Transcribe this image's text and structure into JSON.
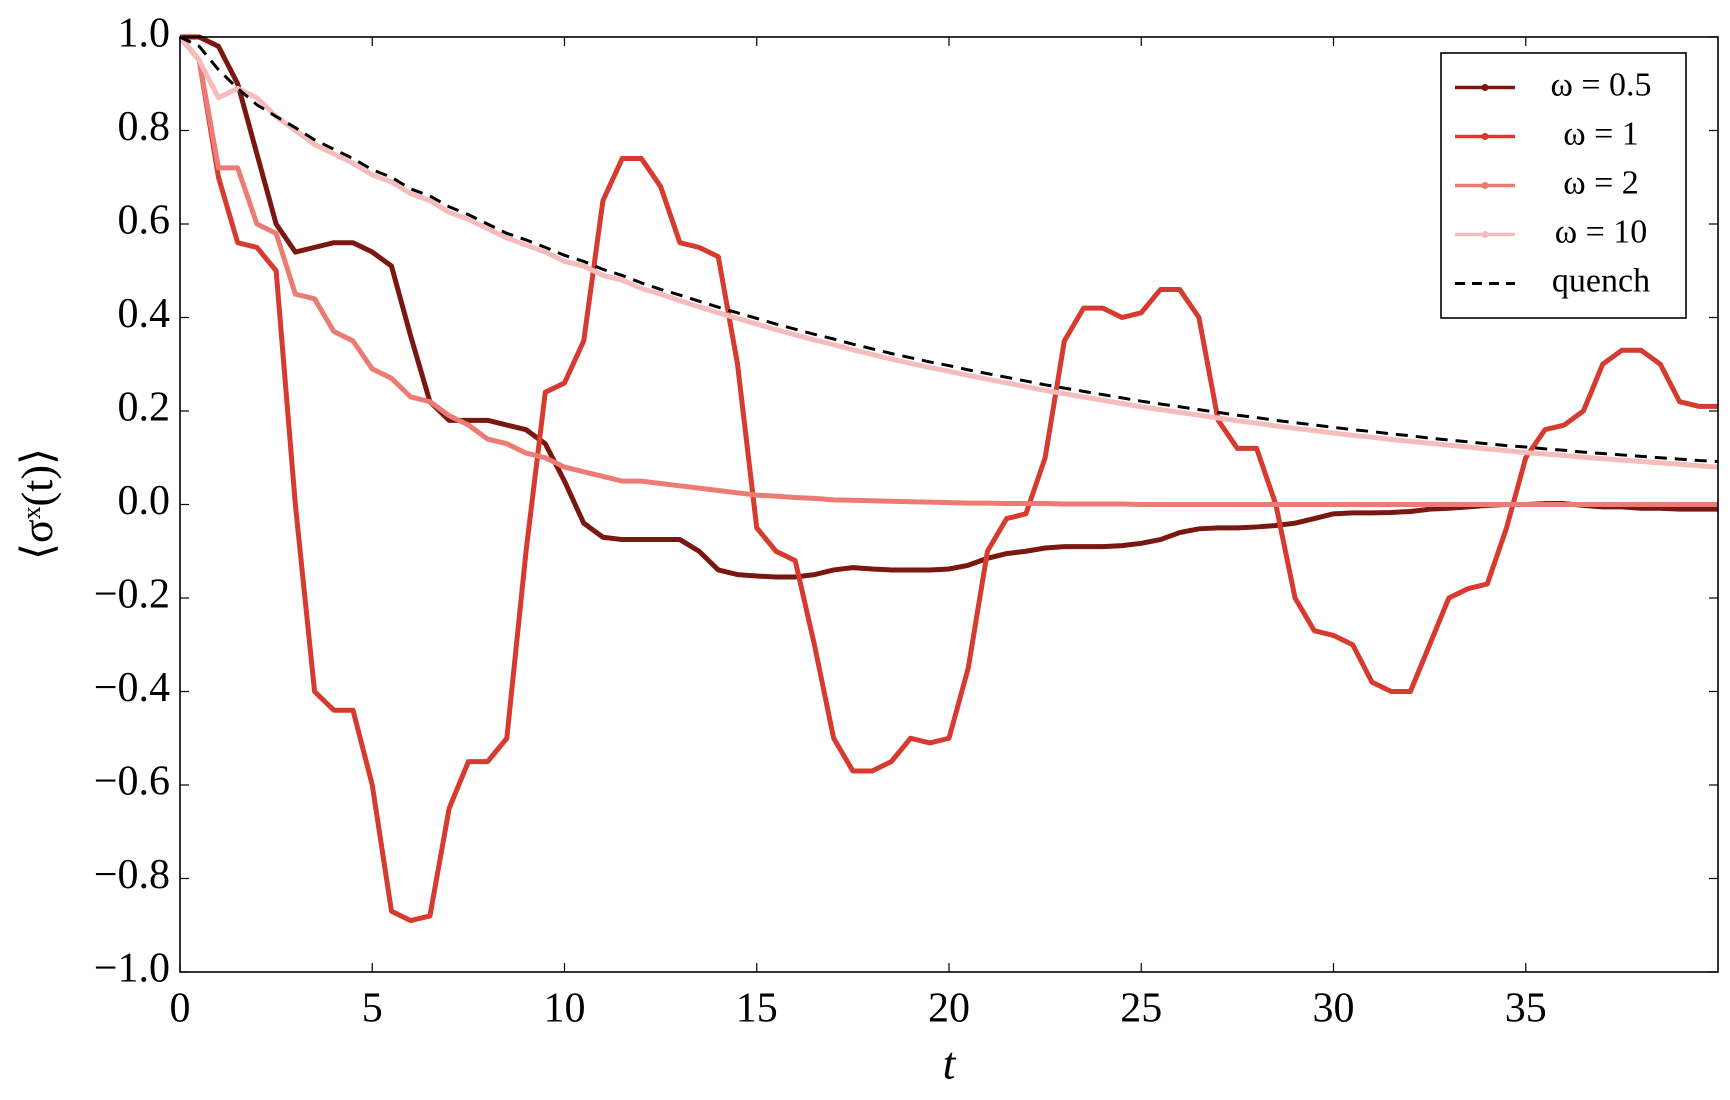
{
  "chart_data": {
    "type": "line",
    "xlabel": "t",
    "ylabel": "⟨σˣ(t)⟩",
    "xlim": [
      0,
      40
    ],
    "ylim": [
      -1,
      1
    ],
    "xticks": [
      0,
      5,
      10,
      15,
      20,
      25,
      30,
      35
    ],
    "yticks": [
      {
        "value": -1,
        "label": "−1.0"
      },
      {
        "value": -0.8,
        "label": "−0.8"
      },
      {
        "value": -0.6,
        "label": "−0.6"
      },
      {
        "value": -0.4,
        "label": "−0.4"
      },
      {
        "value": -0.2,
        "label": "−0.2"
      },
      {
        "value": 0,
        "label": "0.0"
      },
      {
        "value": 0.2,
        "label": "0.2"
      },
      {
        "value": 0.4,
        "label": "0.4"
      },
      {
        "value": 0.6,
        "label": "0.6"
      },
      {
        "value": 0.8,
        "label": "0.8"
      },
      {
        "value": 1,
        "label": "1.0"
      }
    ],
    "grid": false,
    "legend": "upper right",
    "x": [
      0,
      0.5,
      1,
      1.5,
      2,
      2.5,
      3,
      3.5,
      4,
      4.5,
      5,
      5.5,
      6,
      6.5,
      7,
      7.5,
      8,
      8.5,
      9,
      9.5,
      10,
      10.5,
      11,
      11.5,
      12,
      12.5,
      13,
      13.5,
      14,
      14.5,
      15,
      15.5,
      16,
      16.5,
      17,
      17.5,
      18,
      18.5,
      19,
      19.5,
      20,
      20.5,
      21,
      21.5,
      22,
      22.5,
      23,
      23.5,
      24,
      24.5,
      25,
      25.5,
      26,
      26.5,
      27,
      27.5,
      28,
      28.5,
      29,
      29.5,
      30,
      30.5,
      31,
      31.5,
      32,
      32.5,
      33,
      33.5,
      34,
      34.5,
      35,
      35.5,
      36,
      36.5,
      37,
      37.5,
      38,
      38.5,
      39,
      39.5,
      40
    ],
    "series": [
      {
        "name": "ω = 0.5",
        "color": "#7a1711",
        "dash": false,
        "values": [
          1.0,
          1.0,
          0.98,
          0.9,
          0.75,
          0.6,
          0.54,
          0.55,
          0.56,
          0.56,
          0.54,
          0.51,
          0.36,
          0.22,
          0.18,
          0.18,
          0.18,
          0.17,
          0.16,
          0.13,
          0.05,
          -0.04,
          -0.07,
          -0.075,
          -0.075,
          -0.075,
          -0.075,
          -0.1,
          -0.14,
          -0.15,
          -0.153,
          -0.155,
          -0.155,
          -0.15,
          -0.14,
          -0.135,
          -0.138,
          -0.14,
          -0.14,
          -0.14,
          -0.138,
          -0.13,
          -0.115,
          -0.105,
          -0.1,
          -0.093,
          -0.09,
          -0.09,
          -0.09,
          -0.088,
          -0.083,
          -0.075,
          -0.06,
          -0.052,
          -0.05,
          -0.05,
          -0.048,
          -0.045,
          -0.04,
          -0.03,
          -0.02,
          -0.018,
          -0.018,
          -0.017,
          -0.015,
          -0.01,
          -0.008,
          -0.005,
          -0.002,
          0,
          0,
          0.002,
          0.002,
          -0.002,
          -0.005,
          -0.005,
          -0.008,
          -0.008,
          -0.01,
          -0.01,
          -0.01
        ]
      },
      {
        "name": "ω = 1",
        "color": "#d73a2e",
        "dash": false,
        "values": [
          1.0,
          0.95,
          0.7,
          0.56,
          0.55,
          0.5,
          0.0,
          -0.4,
          -0.44,
          -0.44,
          -0.6,
          -0.87,
          -0.89,
          -0.88,
          -0.65,
          -0.55,
          -0.55,
          -0.5,
          -0.1,
          0.24,
          0.26,
          0.35,
          0.65,
          0.74,
          0.74,
          0.68,
          0.56,
          0.55,
          0.53,
          0.3,
          -0.05,
          -0.1,
          -0.12,
          -0.3,
          -0.5,
          -0.57,
          -0.57,
          -0.55,
          -0.5,
          -0.51,
          -0.5,
          -0.35,
          -0.1,
          -0.03,
          -0.02,
          0.1,
          0.35,
          0.42,
          0.42,
          0.4,
          0.41,
          0.46,
          0.46,
          0.4,
          0.18,
          0.12,
          0.12,
          0.0,
          -0.2,
          -0.27,
          -0.28,
          -0.3,
          -0.38,
          -0.4,
          -0.4,
          -0.3,
          -0.2,
          -0.18,
          -0.17,
          -0.05,
          0.1,
          0.16,
          0.17,
          0.2,
          0.3,
          0.33,
          0.33,
          0.3,
          0.22,
          0.21,
          0.21
        ]
      },
      {
        "name": "ω = 2",
        "color": "#ec7b74",
        "dash": false,
        "values": [
          1.0,
          0.95,
          0.72,
          0.72,
          0.6,
          0.58,
          0.45,
          0.44,
          0.37,
          0.35,
          0.29,
          0.27,
          0.23,
          0.22,
          0.19,
          0.17,
          0.14,
          0.13,
          0.11,
          0.1,
          0.08,
          0.07,
          0.06,
          0.05,
          0.05,
          0.045,
          0.04,
          0.035,
          0.03,
          0.025,
          0.02,
          0.018,
          0.015,
          0.013,
          0.01,
          0.009,
          0.008,
          0.007,
          0.006,
          0.005,
          0.004,
          0.003,
          0.003,
          0.002,
          0.002,
          0.002,
          0.001,
          0.001,
          0.001,
          0.001,
          0,
          0,
          0,
          0,
          0,
          0,
          0,
          0,
          0,
          0,
          0,
          0,
          0,
          0,
          0,
          0,
          0,
          0,
          0,
          0,
          0,
          0,
          0,
          0,
          0,
          0,
          0,
          0,
          0,
          0,
          0
        ]
      },
      {
        "name": "ω = 10",
        "color": "#f5bcbc",
        "dash": false,
        "values": [
          1.0,
          0.95,
          0.87,
          0.89,
          0.87,
          0.83,
          0.8,
          0.77,
          0.75,
          0.73,
          0.705,
          0.69,
          0.665,
          0.65,
          0.625,
          0.61,
          0.59,
          0.57,
          0.555,
          0.54,
          0.52,
          0.51,
          0.49,
          0.48,
          0.462,
          0.45,
          0.436,
          0.423,
          0.41,
          0.398,
          0.386,
          0.374,
          0.363,
          0.352,
          0.342,
          0.331,
          0.321,
          0.311,
          0.302,
          0.293,
          0.285,
          0.276,
          0.268,
          0.26,
          0.252,
          0.244,
          0.237,
          0.23,
          0.223,
          0.216,
          0.209,
          0.203,
          0.197,
          0.191,
          0.185,
          0.179,
          0.174,
          0.168,
          0.163,
          0.158,
          0.153,
          0.148,
          0.144,
          0.139,
          0.135,
          0.131,
          0.127,
          0.123,
          0.119,
          0.115,
          0.111,
          0.108,
          0.105,
          0.101,
          0.098,
          0.095,
          0.092,
          0.089,
          0.086,
          0.083,
          0.08
        ]
      },
      {
        "name": "quench",
        "color": "#000000",
        "dash": true,
        "values": [
          1.0,
          0.98,
          0.93,
          0.89,
          0.855,
          0.83,
          0.806,
          0.78,
          0.76,
          0.74,
          0.716,
          0.7,
          0.675,
          0.66,
          0.637,
          0.62,
          0.6,
          0.58,
          0.566,
          0.55,
          0.533,
          0.52,
          0.503,
          0.49,
          0.474,
          0.46,
          0.448,
          0.435,
          0.422,
          0.41,
          0.398,
          0.386,
          0.375,
          0.364,
          0.354,
          0.343,
          0.333,
          0.323,
          0.314,
          0.305,
          0.297,
          0.288,
          0.28,
          0.272,
          0.264,
          0.256,
          0.249,
          0.242,
          0.235,
          0.228,
          0.221,
          0.215,
          0.209,
          0.203,
          0.197,
          0.191,
          0.186,
          0.18,
          0.175,
          0.17,
          0.165,
          0.16,
          0.156,
          0.151,
          0.147,
          0.142,
          0.138,
          0.134,
          0.13,
          0.126,
          0.123,
          0.119,
          0.116,
          0.112,
          0.109,
          0.106,
          0.103,
          0.1,
          0.097,
          0.094,
          0.092
        ]
      }
    ]
  }
}
